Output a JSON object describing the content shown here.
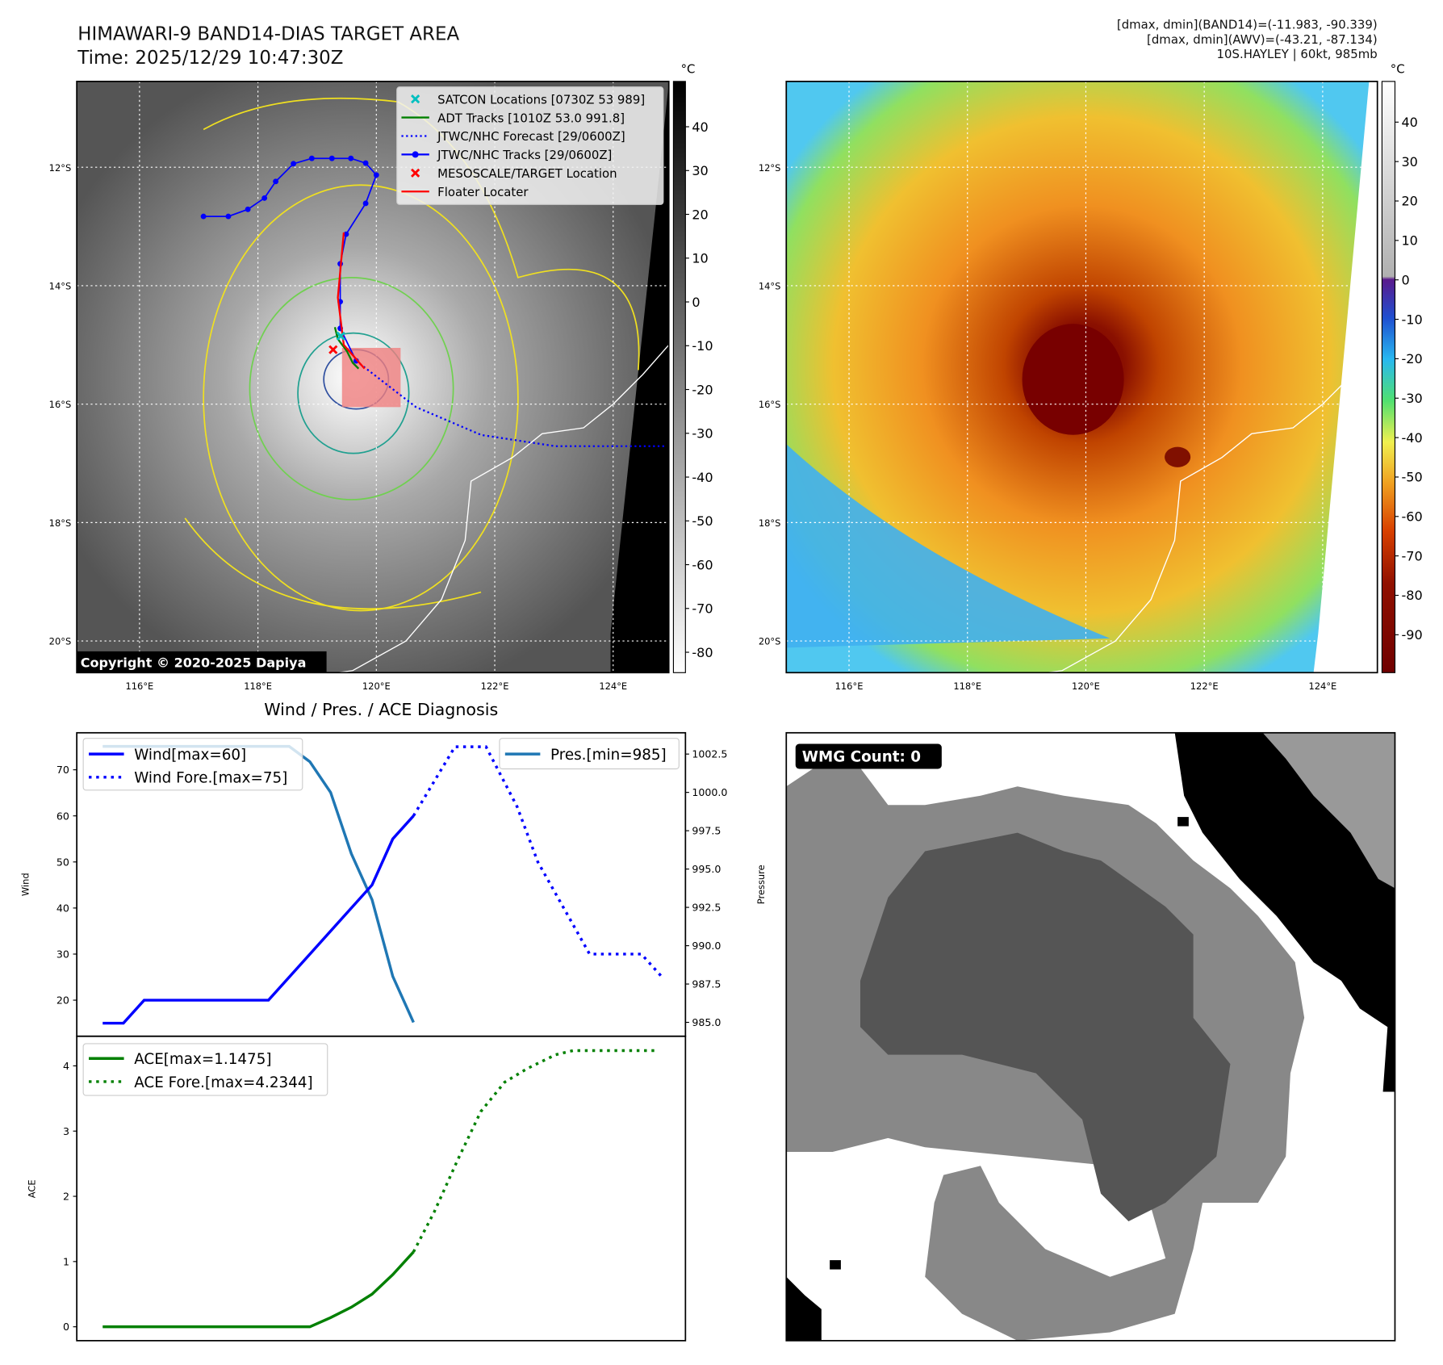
{
  "header": {
    "title": "HIMAWARI-9 BAND14-DIAS TARGET AREA",
    "time": "Time: 2025/12/29 10:47:30Z",
    "info_band14": "[dmax, dmin](BAND14)=(-11.983, -90.339)",
    "info_awv": "[dmax, dmin](AWV)=(-43.21, -87.134)",
    "storm": "10S.HAYLEY | 60kt, 985mb"
  },
  "map": {
    "unit": "°C",
    "lat_labels": [
      "12°S",
      "14°S",
      "16°S",
      "18°S",
      "20°S"
    ],
    "lats": [
      12,
      14,
      16,
      18,
      20
    ],
    "lon_labels": [
      "116°E",
      "118°E",
      "120°E",
      "122°E",
      "124°E"
    ],
    "lons": [
      116,
      118,
      120,
      122,
      124
    ],
    "copyright": "Copyright © 2020-2025 Dapiya",
    "legend": [
      {
        "label": "SATCON Locations [0730Z 53 989]",
        "color": "#00bfbf",
        "style": "x"
      },
      {
        "label": "ADT Tracks [1010Z 53.0 991.8]",
        "color": "#008000",
        "style": "line"
      },
      {
        "label": "JTWC/NHC Forecast [29/0600Z]",
        "color": "#0000ff",
        "style": "dot"
      },
      {
        "label": "JTWC/NHC Tracks [29/0600Z]",
        "color": "#0000ff",
        "style": "marker"
      },
      {
        "label": "MESOSCALE/TARGET Location",
        "color": "#ff0000",
        "style": "x"
      },
      {
        "label": "Floater Locater",
        "color": "#ff0000",
        "style": "line"
      }
    ],
    "jtwc_track": [
      [
        117.08,
        12.83
      ],
      [
        117.5,
        12.83
      ],
      [
        117.83,
        12.71
      ],
      [
        118.11,
        12.52
      ],
      [
        118.3,
        12.24
      ],
      [
        118.6,
        11.94
      ],
      [
        118.91,
        11.85
      ],
      [
        119.25,
        11.85
      ],
      [
        119.57,
        11.85
      ],
      [
        119.82,
        11.93
      ],
      [
        120.0,
        12.13
      ],
      [
        119.82,
        12.61
      ],
      [
        119.49,
        13.13
      ],
      [
        119.39,
        13.63
      ],
      [
        119.39,
        14.27
      ],
      [
        119.39,
        14.72
      ],
      [
        119.66,
        15.27
      ]
    ],
    "jtwc_forecast": [
      [
        119.66,
        15.27
      ],
      [
        120.67,
        16.05
      ],
      [
        121.77,
        16.52
      ],
      [
        123.02,
        16.71
      ],
      [
        124.89,
        16.71
      ]
    ],
    "adt_track": [
      [
        119.3,
        14.7
      ],
      [
        119.35,
        14.9
      ],
      [
        119.5,
        15.1
      ],
      [
        119.6,
        15.3
      ],
      [
        119.7,
        15.4
      ]
    ],
    "floater_track": [
      [
        119.45,
        13.1
      ],
      [
        119.35,
        14.2
      ],
      [
        119.45,
        15.0
      ],
      [
        119.8,
        15.4
      ]
    ],
    "satcon": [
      [
        119.4,
        14.85
      ]
    ],
    "target": [
      [
        119.27,
        15.08
      ]
    ],
    "target_box": [
      119.42,
      15.05,
      120.41,
      16.05
    ],
    "gray_colorbar_ticks": [
      40,
      30,
      20,
      10,
      0,
      -10,
      -20,
      -30,
      -40,
      -50,
      -60,
      -70,
      -80
    ],
    "color_colorbar_ticks": [
      40,
      30,
      20,
      10,
      0,
      -10,
      -20,
      -30,
      -40,
      -50,
      -60,
      -70,
      -80,
      -90
    ]
  },
  "chart_data": [
    {
      "type": "line",
      "title": "Wind / Pres. / ACE Diagnosis",
      "ylabel": "Wind",
      "y2label": "Pressure",
      "ylim": [
        12.2,
        78
      ],
      "y2lim": [
        984.1,
        1003.9
      ],
      "xlim": [
        -2.5,
        56.25
      ],
      "yticks": [
        20,
        30,
        40,
        50,
        60,
        70
      ],
      "y2ticks": [
        985.0,
        987.5,
        990.0,
        992.5,
        995.0,
        997.5,
        1000.0,
        1002.5
      ],
      "series": [
        {
          "name": "Wind[max=60]",
          "color": "#0000ff",
          "style": "solid",
          "x": [
            0,
            2,
            4,
            16,
            26,
            28,
            30
          ],
          "y": [
            15,
            15,
            20,
            20,
            45,
            55,
            60
          ]
        },
        {
          "name": "Wind Fore.[max=75]",
          "color": "#0000ff",
          "style": "dotted",
          "x": [
            30,
            34,
            37,
            40,
            42,
            45,
            47,
            52,
            54
          ],
          "y": [
            60,
            75,
            75,
            62,
            50,
            38,
            30,
            30,
            25
          ]
        },
        {
          "name": "Pres.[min=985]",
          "color": "#1f77b4",
          "style": "solid",
          "axis": "right",
          "x": [
            0,
            18,
            20,
            22,
            24,
            26,
            28,
            30
          ],
          "y": [
            1003,
            1003,
            1002,
            1000,
            996,
            993,
            988,
            985
          ]
        }
      ]
    },
    {
      "type": "line",
      "ylabel": "ACE",
      "ylim": [
        -0.21,
        4.45
      ],
      "xlim": [
        -2.5,
        56.25
      ],
      "yticks": [
        0,
        1,
        2,
        3,
        4
      ],
      "series": [
        {
          "name": "ACE[max=1.1475]",
          "color": "#008000",
          "style": "solid",
          "x": [
            0,
            20,
            22,
            24,
            26,
            28,
            30
          ],
          "y": [
            0,
            0,
            0.14,
            0.3,
            0.5,
            0.8,
            1.1475
          ]
        },
        {
          "name": "ACE Fore.[max=4.2344]",
          "color": "#008000",
          "style": "dotted",
          "x": [
            30,
            32,
            34.3,
            36.5,
            38.8,
            41,
            43.7,
            45.4,
            53.5
          ],
          "y": [
            1.1475,
            1.76,
            2.57,
            3.3,
            3.75,
            3.96,
            4.17,
            4.2344,
            4.2344
          ]
        }
      ]
    }
  ],
  "wmg": {
    "label": "WMG Count: 0"
  }
}
